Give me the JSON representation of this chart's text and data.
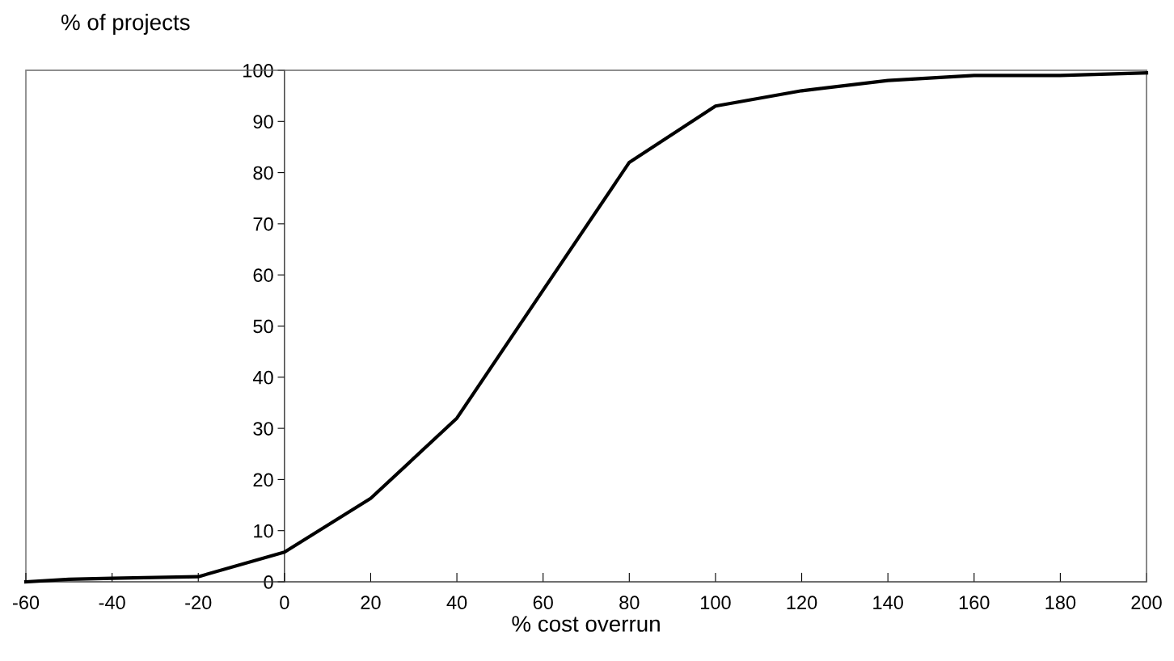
{
  "chart_data": {
    "type": "line",
    "xlabel": "% cost overrun",
    "ylabel": "% of projects",
    "x": [
      -60,
      -50,
      -40,
      -20,
      0,
      20,
      40,
      60,
      80,
      100,
      120,
      140,
      160,
      180,
      200
    ],
    "series": [
      {
        "color": "#000000",
        "values": [
          0,
          0.5,
          0.7,
          1,
          5.8,
          16.3,
          32,
          57,
          82,
          93,
          96,
          98,
          99,
          99,
          99.5
        ]
      }
    ],
    "xlim": [
      -60,
      200
    ],
    "ylim": [
      0,
      100
    ],
    "xticks": [
      -60,
      -40,
      -20,
      0,
      20,
      40,
      60,
      80,
      100,
      120,
      140,
      160,
      180,
      200
    ],
    "yticks": [
      0,
      10,
      20,
      30,
      40,
      50,
      60,
      70,
      80,
      90,
      100
    ],
    "grid": false,
    "legend": false,
    "marker": "none",
    "line_style": "solid"
  }
}
